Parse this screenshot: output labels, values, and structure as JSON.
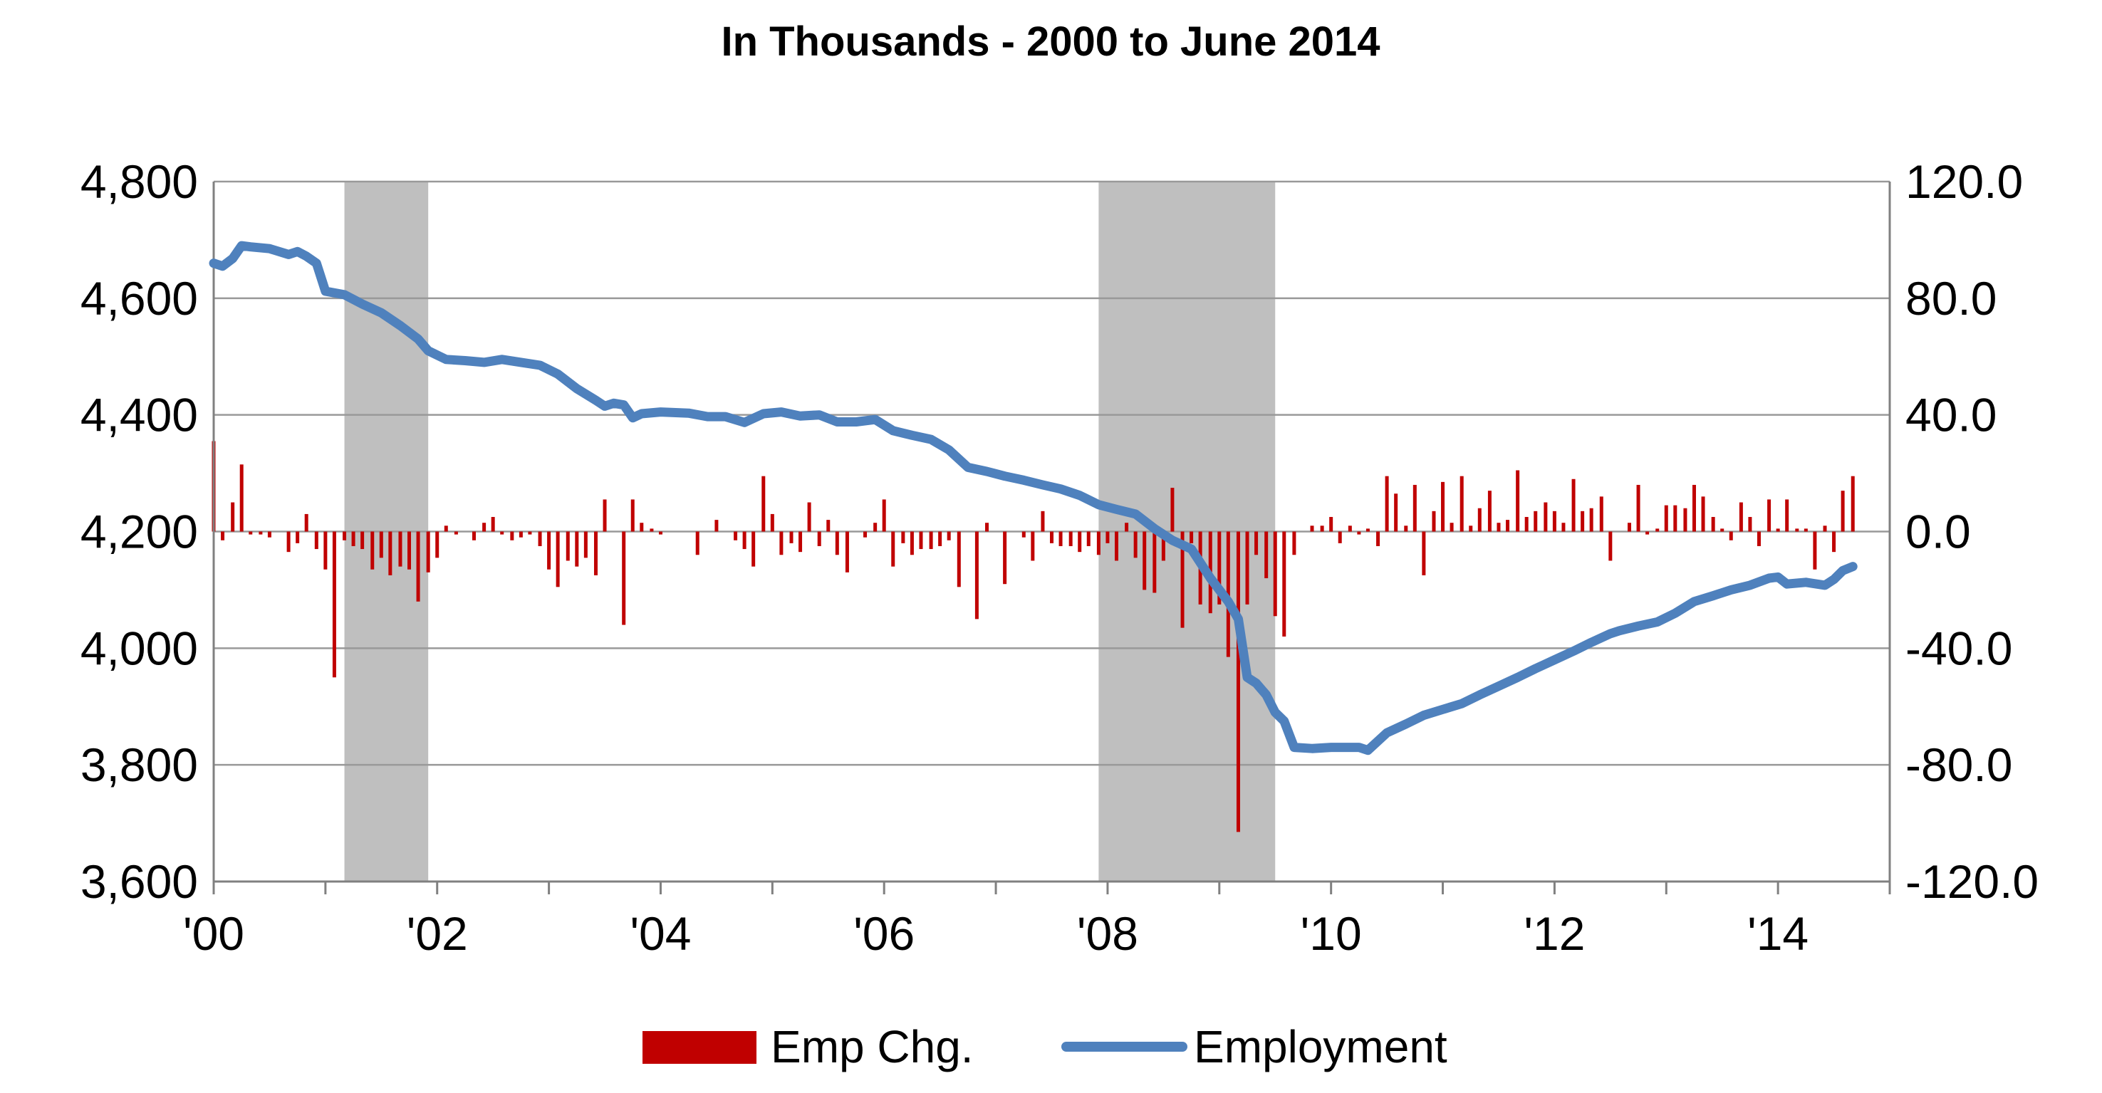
{
  "chart_data": {
    "type": "bar+line",
    "title": "In Thousands - 2000 to June 2014",
    "x_tick_labels": [
      "'00",
      "'02",
      "'04",
      "'06",
      "'08",
      "'10",
      "'12",
      "'14"
    ],
    "y_left": {
      "min": 3600,
      "max": 4800,
      "ticks": [
        "3,600",
        "3,800",
        "4,000",
        "4,200",
        "4,400",
        "4,600",
        "4,800"
      ]
    },
    "y_right": {
      "min": -120,
      "max": 120,
      "ticks": [
        "-120.0",
        "-80.0",
        "-40.0",
        "0.0",
        "40.0",
        "80.0",
        "120.0"
      ]
    },
    "x_range": [
      2000.0,
      2015.0
    ],
    "grid": "horizontal",
    "legend_position": "bottom",
    "recessions": [
      [
        2001.17,
        2001.92
      ],
      [
        2007.92,
        2009.5
      ]
    ],
    "colors": {
      "bars": "#C00000",
      "line": "#4F81BD",
      "recession": "#BFBFBF",
      "grid": "#999999"
    },
    "series": [
      {
        "name": "Emp Chg.",
        "axis": "right",
        "kind": "bar",
        "points": [
          [
            2000.0,
            31
          ],
          [
            2000.08,
            -3
          ],
          [
            2000.17,
            10
          ],
          [
            2000.25,
            23
          ],
          [
            2000.33,
            -1
          ],
          [
            2000.42,
            -1
          ],
          [
            2000.5,
            -2
          ],
          [
            2000.58,
            0
          ],
          [
            2000.67,
            -7
          ],
          [
            2000.75,
            -4
          ],
          [
            2000.83,
            6
          ],
          [
            2000.92,
            -6
          ],
          [
            2001.0,
            -13
          ],
          [
            2001.08,
            -50
          ],
          [
            2001.17,
            -3
          ],
          [
            2001.25,
            -5
          ],
          [
            2001.33,
            -6
          ],
          [
            2001.42,
            -13
          ],
          [
            2001.5,
            -9
          ],
          [
            2001.58,
            -15
          ],
          [
            2001.67,
            -12
          ],
          [
            2001.75,
            -13
          ],
          [
            2001.83,
            -24
          ],
          [
            2001.92,
            -14
          ],
          [
            2002.0,
            -9
          ],
          [
            2002.08,
            2
          ],
          [
            2002.17,
            -1
          ],
          [
            2002.25,
            0
          ],
          [
            2002.33,
            -3
          ],
          [
            2002.42,
            3
          ],
          [
            2002.5,
            5
          ],
          [
            2002.58,
            -1
          ],
          [
            2002.67,
            -3
          ],
          [
            2002.75,
            -2
          ],
          [
            2002.83,
            -1
          ],
          [
            2002.92,
            -5
          ],
          [
            2003.0,
            -13
          ],
          [
            2003.08,
            -19
          ],
          [
            2003.17,
            -10
          ],
          [
            2003.25,
            -12
          ],
          [
            2003.33,
            -9
          ],
          [
            2003.42,
            -15
          ],
          [
            2003.5,
            11
          ],
          [
            2003.58,
            0
          ],
          [
            2003.67,
            -32
          ],
          [
            2003.75,
            11
          ],
          [
            2003.83,
            3
          ],
          [
            2003.92,
            1
          ],
          [
            2004.0,
            -1
          ],
          [
            2004.08,
            0
          ],
          [
            2004.17,
            0
          ],
          [
            2004.25,
            0
          ],
          [
            2004.33,
            -8
          ],
          [
            2004.42,
            0
          ],
          [
            2004.5,
            4
          ],
          [
            2004.58,
            0
          ],
          [
            2004.67,
            -3
          ],
          [
            2004.75,
            -6
          ],
          [
            2004.83,
            -12
          ],
          [
            2004.92,
            19
          ],
          [
            2005.0,
            6
          ],
          [
            2005.08,
            -8
          ],
          [
            2005.17,
            -4
          ],
          [
            2005.25,
            -7
          ],
          [
            2005.33,
            10
          ],
          [
            2005.42,
            -5
          ],
          [
            2005.5,
            4
          ],
          [
            2005.58,
            -8
          ],
          [
            2005.67,
            -14
          ],
          [
            2005.75,
            0
          ],
          [
            2005.83,
            -2
          ],
          [
            2005.92,
            3
          ],
          [
            2006.0,
            11
          ],
          [
            2006.08,
            -12
          ],
          [
            2006.17,
            -4
          ],
          [
            2006.25,
            -8
          ],
          [
            2006.33,
            -6
          ],
          [
            2006.42,
            -6
          ],
          [
            2006.5,
            -5
          ],
          [
            2006.58,
            -3
          ],
          [
            2006.67,
            -19
          ],
          [
            2006.75,
            0
          ],
          [
            2006.83,
            -30
          ],
          [
            2006.92,
            3
          ],
          [
            2007.0,
            0
          ],
          [
            2007.08,
            -18
          ],
          [
            2007.17,
            0
          ],
          [
            2007.25,
            -2
          ],
          [
            2007.33,
            -10
          ],
          [
            2007.42,
            7
          ],
          [
            2007.5,
            -4
          ],
          [
            2007.58,
            -5
          ],
          [
            2007.67,
            -5
          ],
          [
            2007.75,
            -7
          ],
          [
            2007.83,
            -5
          ],
          [
            2007.92,
            -8
          ],
          [
            2008.0,
            -4
          ],
          [
            2008.08,
            -10
          ],
          [
            2008.17,
            3
          ],
          [
            2008.25,
            -9
          ],
          [
            2008.33,
            -20
          ],
          [
            2008.42,
            -21
          ],
          [
            2008.5,
            -10
          ],
          [
            2008.58,
            15
          ],
          [
            2008.67,
            -33
          ],
          [
            2008.75,
            -4
          ],
          [
            2008.83,
            -25
          ],
          [
            2008.92,
            -28
          ],
          [
            2009.0,
            -25
          ],
          [
            2009.08,
            -43
          ],
          [
            2009.17,
            -103
          ],
          [
            2009.25,
            -25
          ],
          [
            2009.33,
            -8
          ],
          [
            2009.42,
            -16
          ],
          [
            2009.5,
            -29
          ],
          [
            2009.58,
            -36
          ],
          [
            2009.67,
            -8
          ],
          [
            2009.75,
            0
          ],
          [
            2009.83,
            2
          ],
          [
            2009.92,
            2
          ],
          [
            2010.0,
            5
          ],
          [
            2010.08,
            -4
          ],
          [
            2010.17,
            2
          ],
          [
            2010.25,
            -1
          ],
          [
            2010.33,
            1
          ],
          [
            2010.42,
            -5
          ],
          [
            2010.5,
            19
          ],
          [
            2010.58,
            13
          ],
          [
            2010.67,
            2
          ],
          [
            2010.75,
            16
          ],
          [
            2010.83,
            -15
          ],
          [
            2010.92,
            7
          ],
          [
            2011.0,
            17
          ],
          [
            2011.08,
            3
          ],
          [
            2011.17,
            19
          ],
          [
            2011.25,
            2
          ],
          [
            2011.33,
            8
          ],
          [
            2011.42,
            14
          ],
          [
            2011.5,
            3
          ],
          [
            2011.58,
            4
          ],
          [
            2011.67,
            21
          ],
          [
            2011.75,
            5
          ],
          [
            2011.83,
            7
          ],
          [
            2011.92,
            10
          ],
          [
            2012.0,
            7
          ],
          [
            2012.08,
            3
          ],
          [
            2012.17,
            18
          ],
          [
            2012.25,
            7
          ],
          [
            2012.33,
            8
          ],
          [
            2012.42,
            12
          ],
          [
            2012.5,
            -10
          ],
          [
            2012.58,
            0
          ],
          [
            2012.67,
            3
          ],
          [
            2012.75,
            16
          ],
          [
            2012.83,
            -1
          ],
          [
            2012.92,
            1
          ],
          [
            2013.0,
            9
          ],
          [
            2013.08,
            9
          ],
          [
            2013.17,
            8
          ],
          [
            2013.25,
            16
          ],
          [
            2013.33,
            12
          ],
          [
            2013.42,
            5
          ],
          [
            2013.5,
            1
          ],
          [
            2013.58,
            -3
          ],
          [
            2013.67,
            10
          ],
          [
            2013.75,
            5
          ],
          [
            2013.83,
            -5
          ],
          [
            2013.92,
            11
          ],
          [
            2014.0,
            1
          ],
          [
            2014.08,
            11
          ],
          [
            2014.17,
            1
          ],
          [
            2014.25,
            1
          ],
          [
            2014.33,
            -13
          ],
          [
            2014.42,
            2
          ],
          [
            2014.5,
            -7
          ],
          [
            2014.58,
            14
          ],
          [
            2014.67,
            19
          ]
        ]
      },
      {
        "name": "Employment",
        "axis": "left",
        "kind": "line",
        "points": [
          [
            2000.0,
            4660
          ],
          [
            2000.08,
            4655
          ],
          [
            2000.17,
            4668
          ],
          [
            2000.25,
            4690
          ],
          [
            2000.33,
            4688
          ],
          [
            2000.5,
            4685
          ],
          [
            2000.67,
            4675
          ],
          [
            2000.75,
            4680
          ],
          [
            2000.83,
            4672
          ],
          [
            2000.92,
            4660
          ],
          [
            2001.0,
            4612
          ],
          [
            2001.17,
            4606
          ],
          [
            2001.33,
            4590
          ],
          [
            2001.5,
            4575
          ],
          [
            2001.67,
            4553
          ],
          [
            2001.83,
            4530
          ],
          [
            2001.92,
            4510
          ],
          [
            2002.08,
            4495
          ],
          [
            2002.25,
            4493
          ],
          [
            2002.42,
            4490
          ],
          [
            2002.58,
            4495
          ],
          [
            2002.75,
            4490
          ],
          [
            2002.92,
            4485
          ],
          [
            2003.08,
            4470
          ],
          [
            2003.25,
            4445
          ],
          [
            2003.42,
            4425
          ],
          [
            2003.5,
            4415
          ],
          [
            2003.58,
            4420
          ],
          [
            2003.67,
            4417
          ],
          [
            2003.75,
            4395
          ],
          [
            2003.83,
            4402
          ],
          [
            2004.0,
            4405
          ],
          [
            2004.25,
            4403
          ],
          [
            2004.42,
            4397
          ],
          [
            2004.58,
            4397
          ],
          [
            2004.75,
            4387
          ],
          [
            2004.92,
            4402
          ],
          [
            2005.08,
            4405
          ],
          [
            2005.25,
            4398
          ],
          [
            2005.42,
            4400
          ],
          [
            2005.58,
            4388
          ],
          [
            2005.75,
            4388
          ],
          [
            2005.92,
            4392
          ],
          [
            2006.08,
            4373
          ],
          [
            2006.25,
            4365
          ],
          [
            2006.42,
            4358
          ],
          [
            2006.58,
            4340
          ],
          [
            2006.75,
            4310
          ],
          [
            2006.92,
            4303
          ],
          [
            2007.08,
            4295
          ],
          [
            2007.25,
            4288
          ],
          [
            2007.42,
            4280
          ],
          [
            2007.58,
            4273
          ],
          [
            2007.75,
            4262
          ],
          [
            2007.92,
            4246
          ],
          [
            2008.08,
            4238
          ],
          [
            2008.25,
            4230
          ],
          [
            2008.42,
            4205
          ],
          [
            2008.58,
            4185
          ],
          [
            2008.75,
            4170
          ],
          [
            2008.92,
            4120
          ],
          [
            2009.08,
            4080
          ],
          [
            2009.17,
            4050
          ],
          [
            2009.25,
            3950
          ],
          [
            2009.33,
            3940
          ],
          [
            2009.42,
            3920
          ],
          [
            2009.5,
            3890
          ],
          [
            2009.58,
            3875
          ],
          [
            2009.67,
            3830
          ],
          [
            2009.83,
            3828
          ],
          [
            2010.0,
            3830
          ],
          [
            2010.25,
            3830
          ],
          [
            2010.33,
            3825
          ],
          [
            2010.5,
            3855
          ],
          [
            2010.67,
            3870
          ],
          [
            2010.83,
            3885
          ],
          [
            2011.0,
            3895
          ],
          [
            2011.17,
            3905
          ],
          [
            2011.33,
            3920
          ],
          [
            2011.5,
            3935
          ],
          [
            2011.67,
            3950
          ],
          [
            2011.83,
            3965
          ],
          [
            2012.0,
            3980
          ],
          [
            2012.17,
            3995
          ],
          [
            2012.33,
            4010
          ],
          [
            2012.5,
            4025
          ],
          [
            2012.58,
            4030
          ],
          [
            2012.75,
            4038
          ],
          [
            2012.92,
            4045
          ],
          [
            2013.08,
            4060
          ],
          [
            2013.25,
            4080
          ],
          [
            2013.42,
            4090
          ],
          [
            2013.58,
            4100
          ],
          [
            2013.75,
            4108
          ],
          [
            2013.92,
            4120
          ],
          [
            2014.0,
            4122
          ],
          [
            2014.08,
            4110
          ],
          [
            2014.25,
            4113
          ],
          [
            2014.42,
            4108
          ],
          [
            2014.5,
            4118
          ],
          [
            2014.58,
            4133
          ],
          [
            2014.67,
            4140
          ]
        ]
      }
    ]
  }
}
